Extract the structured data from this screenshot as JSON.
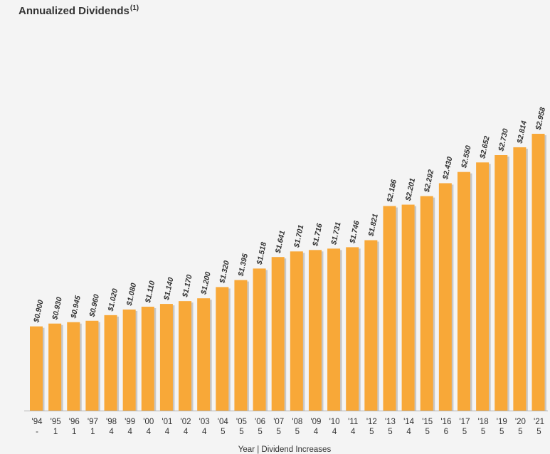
{
  "title": {
    "text": "Annualized Dividends",
    "superscript": "(1)"
  },
  "chart_data": {
    "type": "bar",
    "title": "Annualized Dividends",
    "xlabel": "Year | Dividend Increases",
    "ylabel": "",
    "ylim": [
      0,
      3.2
    ],
    "grid": false,
    "categories": [
      "'94",
      "'95",
      "'96",
      "'97",
      "'98",
      "'99",
      "'00",
      "'01",
      "'02",
      "'03",
      "'04",
      "'05",
      "'06",
      "'07",
      "'08",
      "'09",
      "'10",
      "'11",
      "'12",
      "'13",
      "'14",
      "'15",
      "'16",
      "'17",
      "'18",
      "'19",
      "'20",
      "'21"
    ],
    "dividend_increases": [
      "-",
      "1",
      "1",
      "1",
      "4",
      "4",
      "4",
      "4",
      "4",
      "4",
      "5",
      "5",
      "5",
      "5",
      "5",
      "4",
      "4",
      "4",
      "5",
      "5",
      "4",
      "5",
      "6",
      "5",
      "5",
      "5",
      "5",
      "5"
    ],
    "values": [
      0.9,
      0.93,
      0.945,
      0.96,
      1.02,
      1.08,
      1.11,
      1.14,
      1.17,
      1.2,
      1.32,
      1.395,
      1.518,
      1.641,
      1.701,
      1.716,
      1.731,
      1.746,
      1.821,
      2.186,
      2.201,
      2.292,
      2.43,
      2.55,
      2.652,
      2.73,
      2.814,
      2.958
    ],
    "value_labels": [
      "$0.900",
      "$0.930",
      "$0.945",
      "$0.960",
      "$1.020",
      "$1.080",
      "$1.110",
      "$1.140",
      "$1.170",
      "$1.200",
      "$1.320",
      "$1.395",
      "$1.518",
      "$1.641",
      "$1.701",
      "$1.716",
      "$1.731",
      "$1.746",
      "$1.821",
      "$2.186",
      "$2.201",
      "$2.292",
      "$2.430",
      "$2.550",
      "$2.652",
      "$2.730",
      "$2.814",
      "$2.958"
    ],
    "colors": {
      "bar": "#F8A838",
      "bar_shadow": "#c8c8c8",
      "axis": "#b0b0b0",
      "text": "#333333"
    }
  }
}
